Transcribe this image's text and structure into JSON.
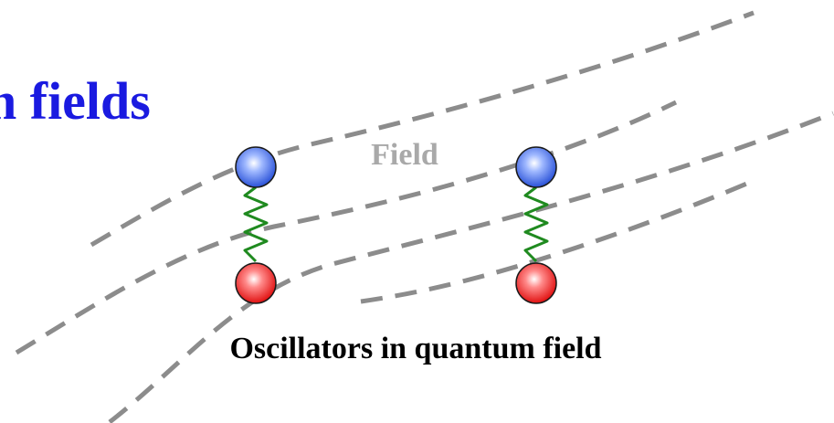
{
  "title": "n fields",
  "field_label": "Field",
  "caption": "Oscillators in quantum field"
}
